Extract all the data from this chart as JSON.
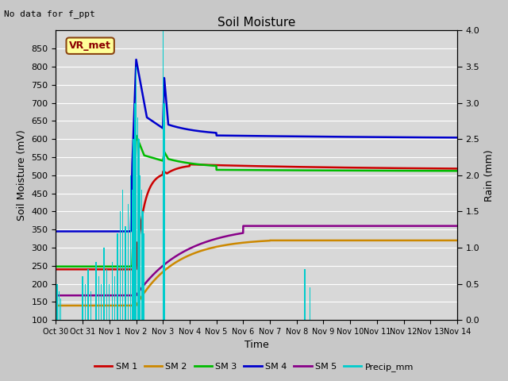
{
  "title": "Soil Moisture",
  "xlabel": "Time",
  "ylabel_left": "Soil Moisture (mV)",
  "ylabel_right": "Rain (mm)",
  "annotation_text": "No data for f_ppt",
  "box_label": "VR_met",
  "ylim_left": [
    100,
    900
  ],
  "ylim_right": [
    0.0,
    4.0
  ],
  "yticks_left": [
    100,
    150,
    200,
    250,
    300,
    350,
    400,
    450,
    500,
    550,
    600,
    650,
    700,
    750,
    800,
    850
  ],
  "yticks_right": [
    0.0,
    0.5,
    1.0,
    1.5,
    2.0,
    2.5,
    3.0,
    3.5,
    4.0
  ],
  "xtick_labels": [
    "Oct 30",
    "Oct 31",
    "Nov 1",
    "Nov 2",
    "Nov 3",
    "Nov 4",
    "Nov 5",
    "Nov 6",
    "Nov 7",
    "Nov 8",
    "Nov 9",
    "Nov 10",
    "Nov 11",
    "Nov 12",
    "Nov 13",
    "Nov 14"
  ],
  "background_color": "#d8d8d8",
  "grid_color": "#ffffff",
  "colors": {
    "SM1": "#cc0000",
    "SM2": "#cc8800",
    "SM3": "#00bb00",
    "SM4": "#0000cc",
    "SM5": "#880088",
    "Precip": "#00cccc"
  },
  "legend_labels": [
    "SM 1",
    "SM 2",
    "SM 3",
    "SM 4",
    "SM 5",
    "Precip_mm"
  ],
  "figsize": [
    6.4,
    4.8
  ],
  "dpi": 100
}
